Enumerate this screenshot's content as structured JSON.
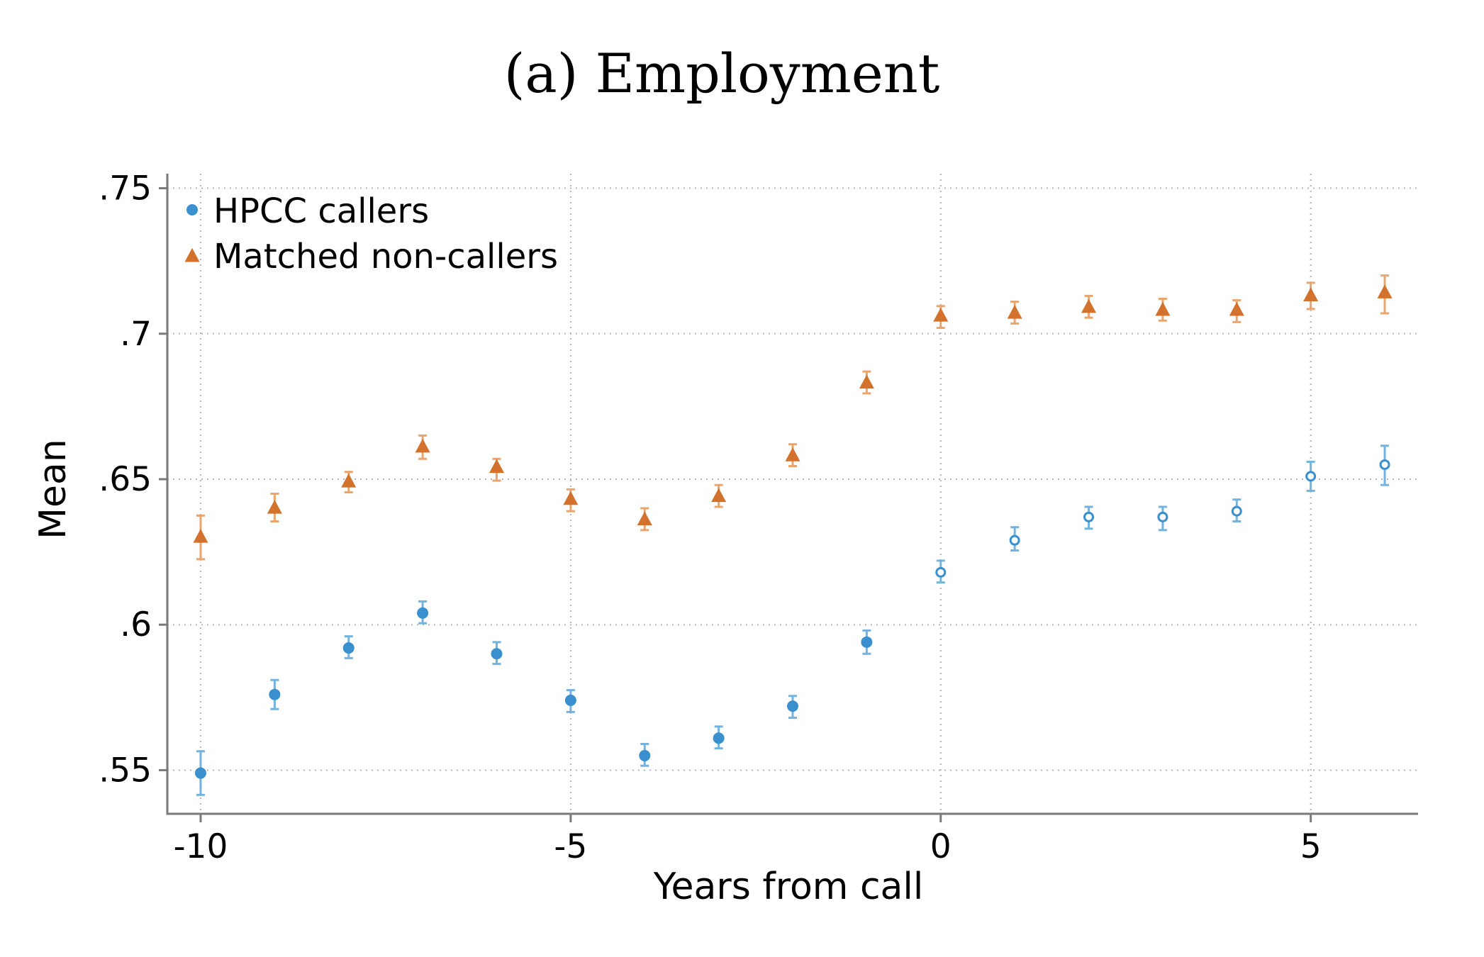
{
  "chart_data": {
    "type": "scatter",
    "title": "(a) Employment",
    "xlabel": "Years from call",
    "ylabel": "Mean",
    "xlim": [
      -10.45,
      6.45
    ],
    "ylim": [
      0.535,
      0.755
    ],
    "xticks": [
      {
        "value": -10,
        "label": "-10"
      },
      {
        "value": -5,
        "label": "-5"
      },
      {
        "value": 0,
        "label": "0"
      },
      {
        "value": 5,
        "label": "5"
      }
    ],
    "yticks": [
      {
        "value": 0.55,
        "label": ".55"
      },
      {
        "value": 0.6,
        "label": ".6"
      },
      {
        "value": 0.65,
        "label": ".65"
      },
      {
        "value": 0.7,
        "label": ".7"
      },
      {
        "value": 0.75,
        "label": ".75"
      }
    ],
    "grid": true,
    "legend_position": "top-left",
    "series": [
      {
        "name": "HPCC callers",
        "color": "#3a8fcf",
        "error_color": "#72b3df",
        "marker": "circle",
        "points": [
          {
            "x": -10,
            "y": 0.549,
            "lo": 0.5415,
            "hi": 0.5565
          },
          {
            "x": -9,
            "y": 0.576,
            "lo": 0.571,
            "hi": 0.581
          },
          {
            "x": -8,
            "y": 0.592,
            "lo": 0.5885,
            "hi": 0.596
          },
          {
            "x": -7,
            "y": 0.604,
            "lo": 0.6005,
            "hi": 0.608
          },
          {
            "x": -6,
            "y": 0.59,
            "lo": 0.5865,
            "hi": 0.594
          },
          {
            "x": -5,
            "y": 0.574,
            "lo": 0.57,
            "hi": 0.5775
          },
          {
            "x": -4,
            "y": 0.555,
            "lo": 0.5515,
            "hi": 0.559
          },
          {
            "x": -3,
            "y": 0.561,
            "lo": 0.5575,
            "hi": 0.565
          },
          {
            "x": -2,
            "y": 0.572,
            "lo": 0.568,
            "hi": 0.5755
          },
          {
            "x": -1,
            "y": 0.594,
            "lo": 0.59,
            "hi": 0.598
          },
          {
            "x": 0,
            "y": 0.618,
            "lo": 0.6145,
            "hi": 0.622,
            "hollow": true
          },
          {
            "x": 1,
            "y": 0.629,
            "lo": 0.6255,
            "hi": 0.6335,
            "hollow": true
          },
          {
            "x": 2,
            "y": 0.637,
            "lo": 0.633,
            "hi": 0.6405,
            "hollow": true
          },
          {
            "x": 3,
            "y": 0.637,
            "lo": 0.6325,
            "hi": 0.6405,
            "hollow": true
          },
          {
            "x": 4,
            "y": 0.639,
            "lo": 0.6355,
            "hi": 0.643,
            "hollow": true
          },
          {
            "x": 5,
            "y": 0.651,
            "lo": 0.646,
            "hi": 0.656,
            "hollow": true
          },
          {
            "x": 6,
            "y": 0.655,
            "lo": 0.648,
            "hi": 0.6615,
            "hollow": true
          }
        ]
      },
      {
        "name": "Matched non-callers",
        "color": "#d2722c",
        "error_color": "#e9a56d",
        "marker": "triangle",
        "points": [
          {
            "x": -10,
            "y": 0.63,
            "lo": 0.6225,
            "hi": 0.6375
          },
          {
            "x": -9,
            "y": 0.64,
            "lo": 0.6355,
            "hi": 0.645
          },
          {
            "x": -8,
            "y": 0.649,
            "lo": 0.6455,
            "hi": 0.6525
          },
          {
            "x": -7,
            "y": 0.661,
            "lo": 0.657,
            "hi": 0.665
          },
          {
            "x": -6,
            "y": 0.654,
            "lo": 0.6495,
            "hi": 0.657
          },
          {
            "x": -5,
            "y": 0.643,
            "lo": 0.639,
            "hi": 0.6465
          },
          {
            "x": -4,
            "y": 0.636,
            "lo": 0.6325,
            "hi": 0.64
          },
          {
            "x": -3,
            "y": 0.644,
            "lo": 0.6405,
            "hi": 0.648
          },
          {
            "x": -2,
            "y": 0.658,
            "lo": 0.6545,
            "hi": 0.662
          },
          {
            "x": -1,
            "y": 0.683,
            "lo": 0.6795,
            "hi": 0.687
          },
          {
            "x": 0,
            "y": 0.706,
            "lo": 0.702,
            "hi": 0.7095
          },
          {
            "x": 1,
            "y": 0.707,
            "lo": 0.7035,
            "hi": 0.711
          },
          {
            "x": 2,
            "y": 0.709,
            "lo": 0.7055,
            "hi": 0.713
          },
          {
            "x": 3,
            "y": 0.708,
            "lo": 0.7045,
            "hi": 0.712
          },
          {
            "x": 4,
            "y": 0.708,
            "lo": 0.704,
            "hi": 0.7115
          },
          {
            "x": 5,
            "y": 0.713,
            "lo": 0.7085,
            "hi": 0.7175
          },
          {
            "x": 6,
            "y": 0.714,
            "lo": 0.707,
            "hi": 0.72
          }
        ]
      }
    ]
  }
}
